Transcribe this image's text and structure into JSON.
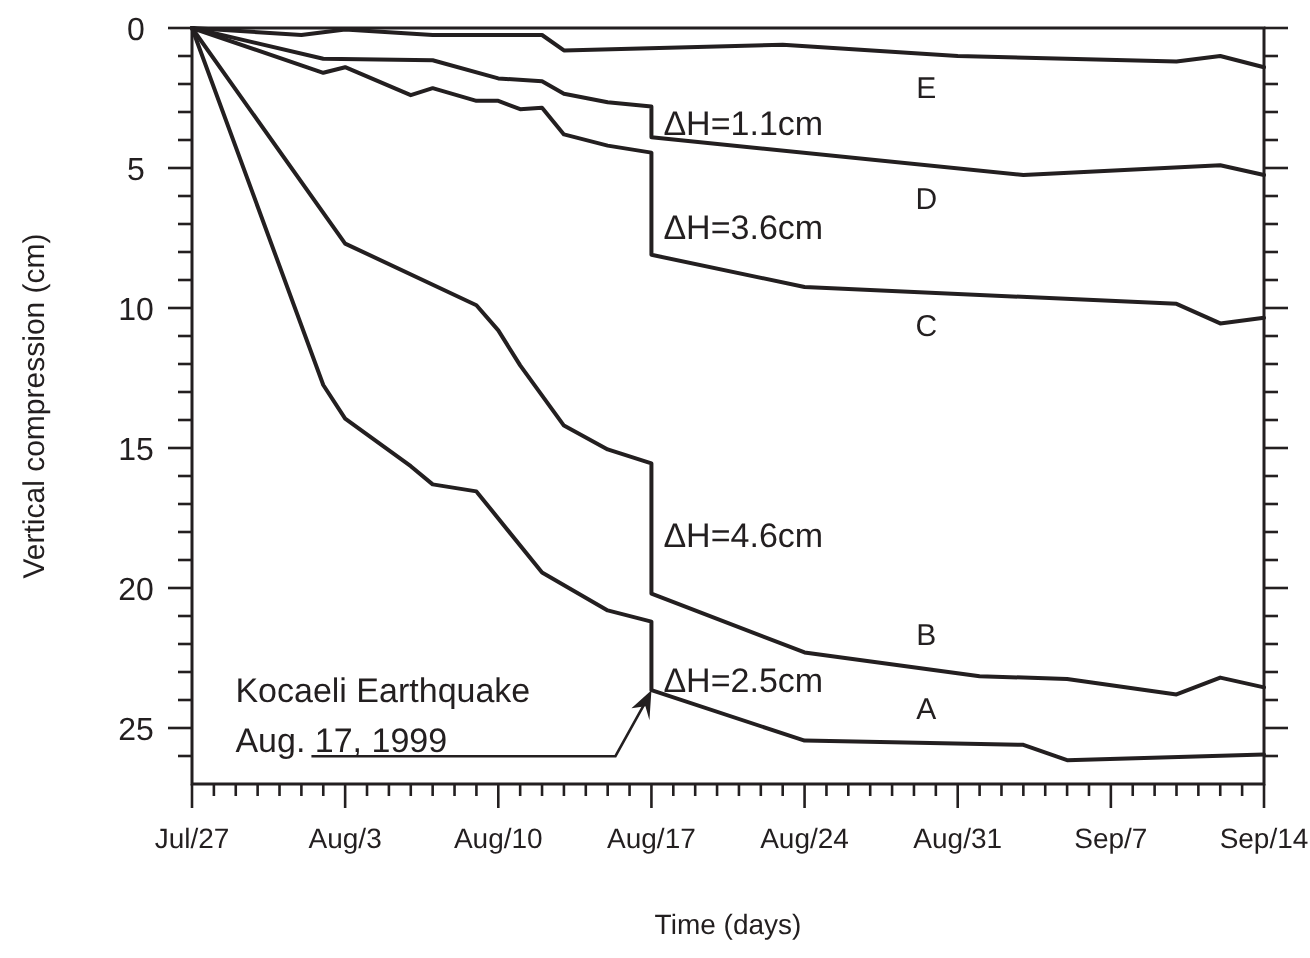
{
  "chart_data": {
    "type": "line",
    "xlabel": "Time (days)",
    "ylabel": "Vertical compression (cm)",
    "x": [
      "--07-27",
      "--08-01",
      "--08-03",
      "--08-07",
      "--08-12",
      "--08-13",
      "--08-23",
      "--08-31",
      "--09-10",
      "--09-12",
      "--09-14"
    ],
    "series": [
      {
        "name": "E",
        "color": "#231f20",
        "values": [
          0,
          0.25,
          0.05,
          0.25,
          0.25,
          0.8,
          0.6,
          1.0,
          1.2,
          1.0,
          1.4
        ]
      },
      {
        "name": "D",
        "color": "#231f20",
        "x": [
          "--07-27",
          "--08-02",
          "--08-07",
          "--08-10",
          "--08-12",
          "--08-13",
          "--08-15",
          "--08-17",
          "--08-17",
          "--09-03",
          "--09-12",
          "--09-14"
        ],
        "values": [
          0,
          1.1,
          1.15,
          1.8,
          1.9,
          2.35,
          2.65,
          2.8,
          3.9,
          5.25,
          4.9,
          5.25
        ]
      },
      {
        "name": "C",
        "color": "#231f20",
        "x": [
          "--07-27",
          "--08-02",
          "--08-03",
          "--08-06",
          "--08-07",
          "--08-09",
          "--08-10",
          "--08-11",
          "--08-12",
          "--08-13",
          "--08-15",
          "--08-17",
          "--08-17",
          "--08-24",
          "--09-10",
          "--09-12",
          "--09-14"
        ],
        "values": [
          0,
          1.6,
          1.4,
          2.4,
          2.15,
          2.6,
          2.6,
          2.9,
          2.85,
          3.8,
          4.2,
          4.45,
          8.1,
          9.25,
          9.85,
          10.55,
          10.35
        ]
      },
      {
        "name": "B",
        "color": "#231f20",
        "x": [
          "--07-27",
          "--08-03",
          "--08-09",
          "--08-10",
          "--08-11",
          "--08-13",
          "--08-15",
          "--08-17",
          "--08-17",
          "--08-24",
          "--09-01",
          "--09-05",
          "--09-10",
          "--09-12",
          "--09-14"
        ],
        "values": [
          0,
          7.7,
          9.9,
          10.8,
          12.05,
          14.2,
          15.05,
          15.55,
          20.2,
          22.3,
          23.15,
          23.25,
          23.8,
          23.2,
          23.55
        ]
      },
      {
        "name": "A",
        "color": "#231f20",
        "x": [
          "--07-27",
          "--08-02",
          "--08-03",
          "--08-06",
          "--08-07",
          "--08-09",
          "--08-12",
          "--08-15",
          "--08-17",
          "--08-17",
          "--08-24",
          "--09-03",
          "--09-05",
          "--09-14"
        ],
        "values": [
          0,
          12.75,
          13.95,
          15.65,
          16.3,
          16.55,
          19.45,
          20.8,
          21.2,
          23.65,
          25.45,
          25.6,
          26.15,
          25.95
        ]
      }
    ],
    "xlim": [
      "--07-27",
      "--09-14"
    ],
    "xticks": [
      {
        "value": "--07-27",
        "label": "Jul/27"
      },
      {
        "value": "--07-28",
        "label": null
      },
      {
        "value": "--07-29",
        "label": null
      },
      {
        "value": "--07-30",
        "label": null
      },
      {
        "value": "--07-31",
        "label": null
      },
      {
        "value": "--08-01",
        "label": null
      },
      {
        "value": "--08-02",
        "label": null
      },
      {
        "value": "--08-03",
        "label": "Aug/3"
      },
      {
        "value": "--08-04",
        "label": null
      },
      {
        "value": "--08-05",
        "label": null
      },
      {
        "value": "--08-06",
        "label": null
      },
      {
        "value": "--08-07",
        "label": null
      },
      {
        "value": "--08-08",
        "label": null
      },
      {
        "value": "--08-09",
        "label": null
      },
      {
        "value": "--08-10",
        "label": "Aug/10"
      },
      {
        "value": "--08-11",
        "label": null
      },
      {
        "value": "--08-12",
        "label": null
      },
      {
        "value": "--08-13",
        "label": null
      },
      {
        "value": "--08-14",
        "label": null
      },
      {
        "value": "--08-15",
        "label": null
      },
      {
        "value": "--08-16",
        "label": null
      },
      {
        "value": "--08-17",
        "label": "Aug/17"
      },
      {
        "value": "--08-18",
        "label": null
      },
      {
        "value": "--08-19",
        "label": null
      },
      {
        "value": "--08-20",
        "label": null
      },
      {
        "value": "--08-21",
        "label": null
      },
      {
        "value": "--08-22",
        "label": null
      },
      {
        "value": "--08-23",
        "label": null
      },
      {
        "value": "--08-24",
        "label": "Aug/24"
      },
      {
        "value": "--08-25",
        "label": null
      },
      {
        "value": "--08-26",
        "label": null
      },
      {
        "value": "--08-27",
        "label": null
      },
      {
        "value": "--08-28",
        "label": null
      },
      {
        "value": "--08-29",
        "label": null
      },
      {
        "value": "--08-30",
        "label": null
      },
      {
        "value": "--08-31",
        "label": "Aug/31"
      },
      {
        "value": "--09-01",
        "label": null
      },
      {
        "value": "--09-02",
        "label": null
      },
      {
        "value": "--09-03",
        "label": null
      },
      {
        "value": "--09-04",
        "label": null
      },
      {
        "value": "--09-05",
        "label": null
      },
      {
        "value": "--09-06",
        "label": null
      },
      {
        "value": "--09-07",
        "label": "Sep/7"
      },
      {
        "value": "--09-08",
        "label": null
      },
      {
        "value": "--09-09",
        "label": null
      },
      {
        "value": "--09-10",
        "label": null
      },
      {
        "value": "--09-11",
        "label": null
      },
      {
        "value": "--09-12",
        "label": null
      },
      {
        "value": "--09-13",
        "label": null
      },
      {
        "value": "--09-14",
        "label": "Sep/14"
      }
    ],
    "ylim": [
      27,
      0
    ],
    "yticks": [
      0,
      {
        "value": 1,
        "label": null
      },
      {
        "value": 2,
        "label": null
      },
      {
        "value": 3,
        "label": null
      },
      {
        "value": 4,
        "label": null
      },
      5,
      {
        "value": 6,
        "label": null
      },
      {
        "value": 7,
        "label": null
      },
      {
        "value": 8,
        "label": null
      },
      {
        "value": 9,
        "label": null
      },
      10,
      {
        "value": 11,
        "label": null
      },
      {
        "value": 12,
        "label": null
      },
      {
        "value": 13,
        "label": null
      },
      {
        "value": 14,
        "label": null
      },
      15,
      {
        "value": 16,
        "label": null
      },
      {
        "value": 17,
        "label": null
      },
      {
        "value": 18,
        "label": null
      },
      {
        "value": 19,
        "label": null
      },
      20,
      {
        "value": 21,
        "label": null
      },
      {
        "value": 22,
        "label": null
      },
      {
        "value": 23,
        "label": null
      },
      {
        "value": 24,
        "label": null
      },
      25,
      {
        "value": 26,
        "label": null
      }
    ],
    "annotations": [
      {
        "text": "ΔH=1.1cm",
        "x": "--08-17",
        "y": 3.4
      },
      {
        "text": "ΔH=3.6cm",
        "x": "--08-17",
        "y": 7.1
      },
      {
        "text": "ΔH=4.6cm",
        "x": "--08-17",
        "y": 18.1
      },
      {
        "text": "ΔH=2.5cm",
        "x": "--08-17",
        "y": 23.3
      },
      {
        "text": "Kocaeli Earthquake\nAug. 17, 1999",
        "x": "--08-17",
        "y": 23.65
      }
    ],
    "marker": "none",
    "line_style": "solid"
  }
}
